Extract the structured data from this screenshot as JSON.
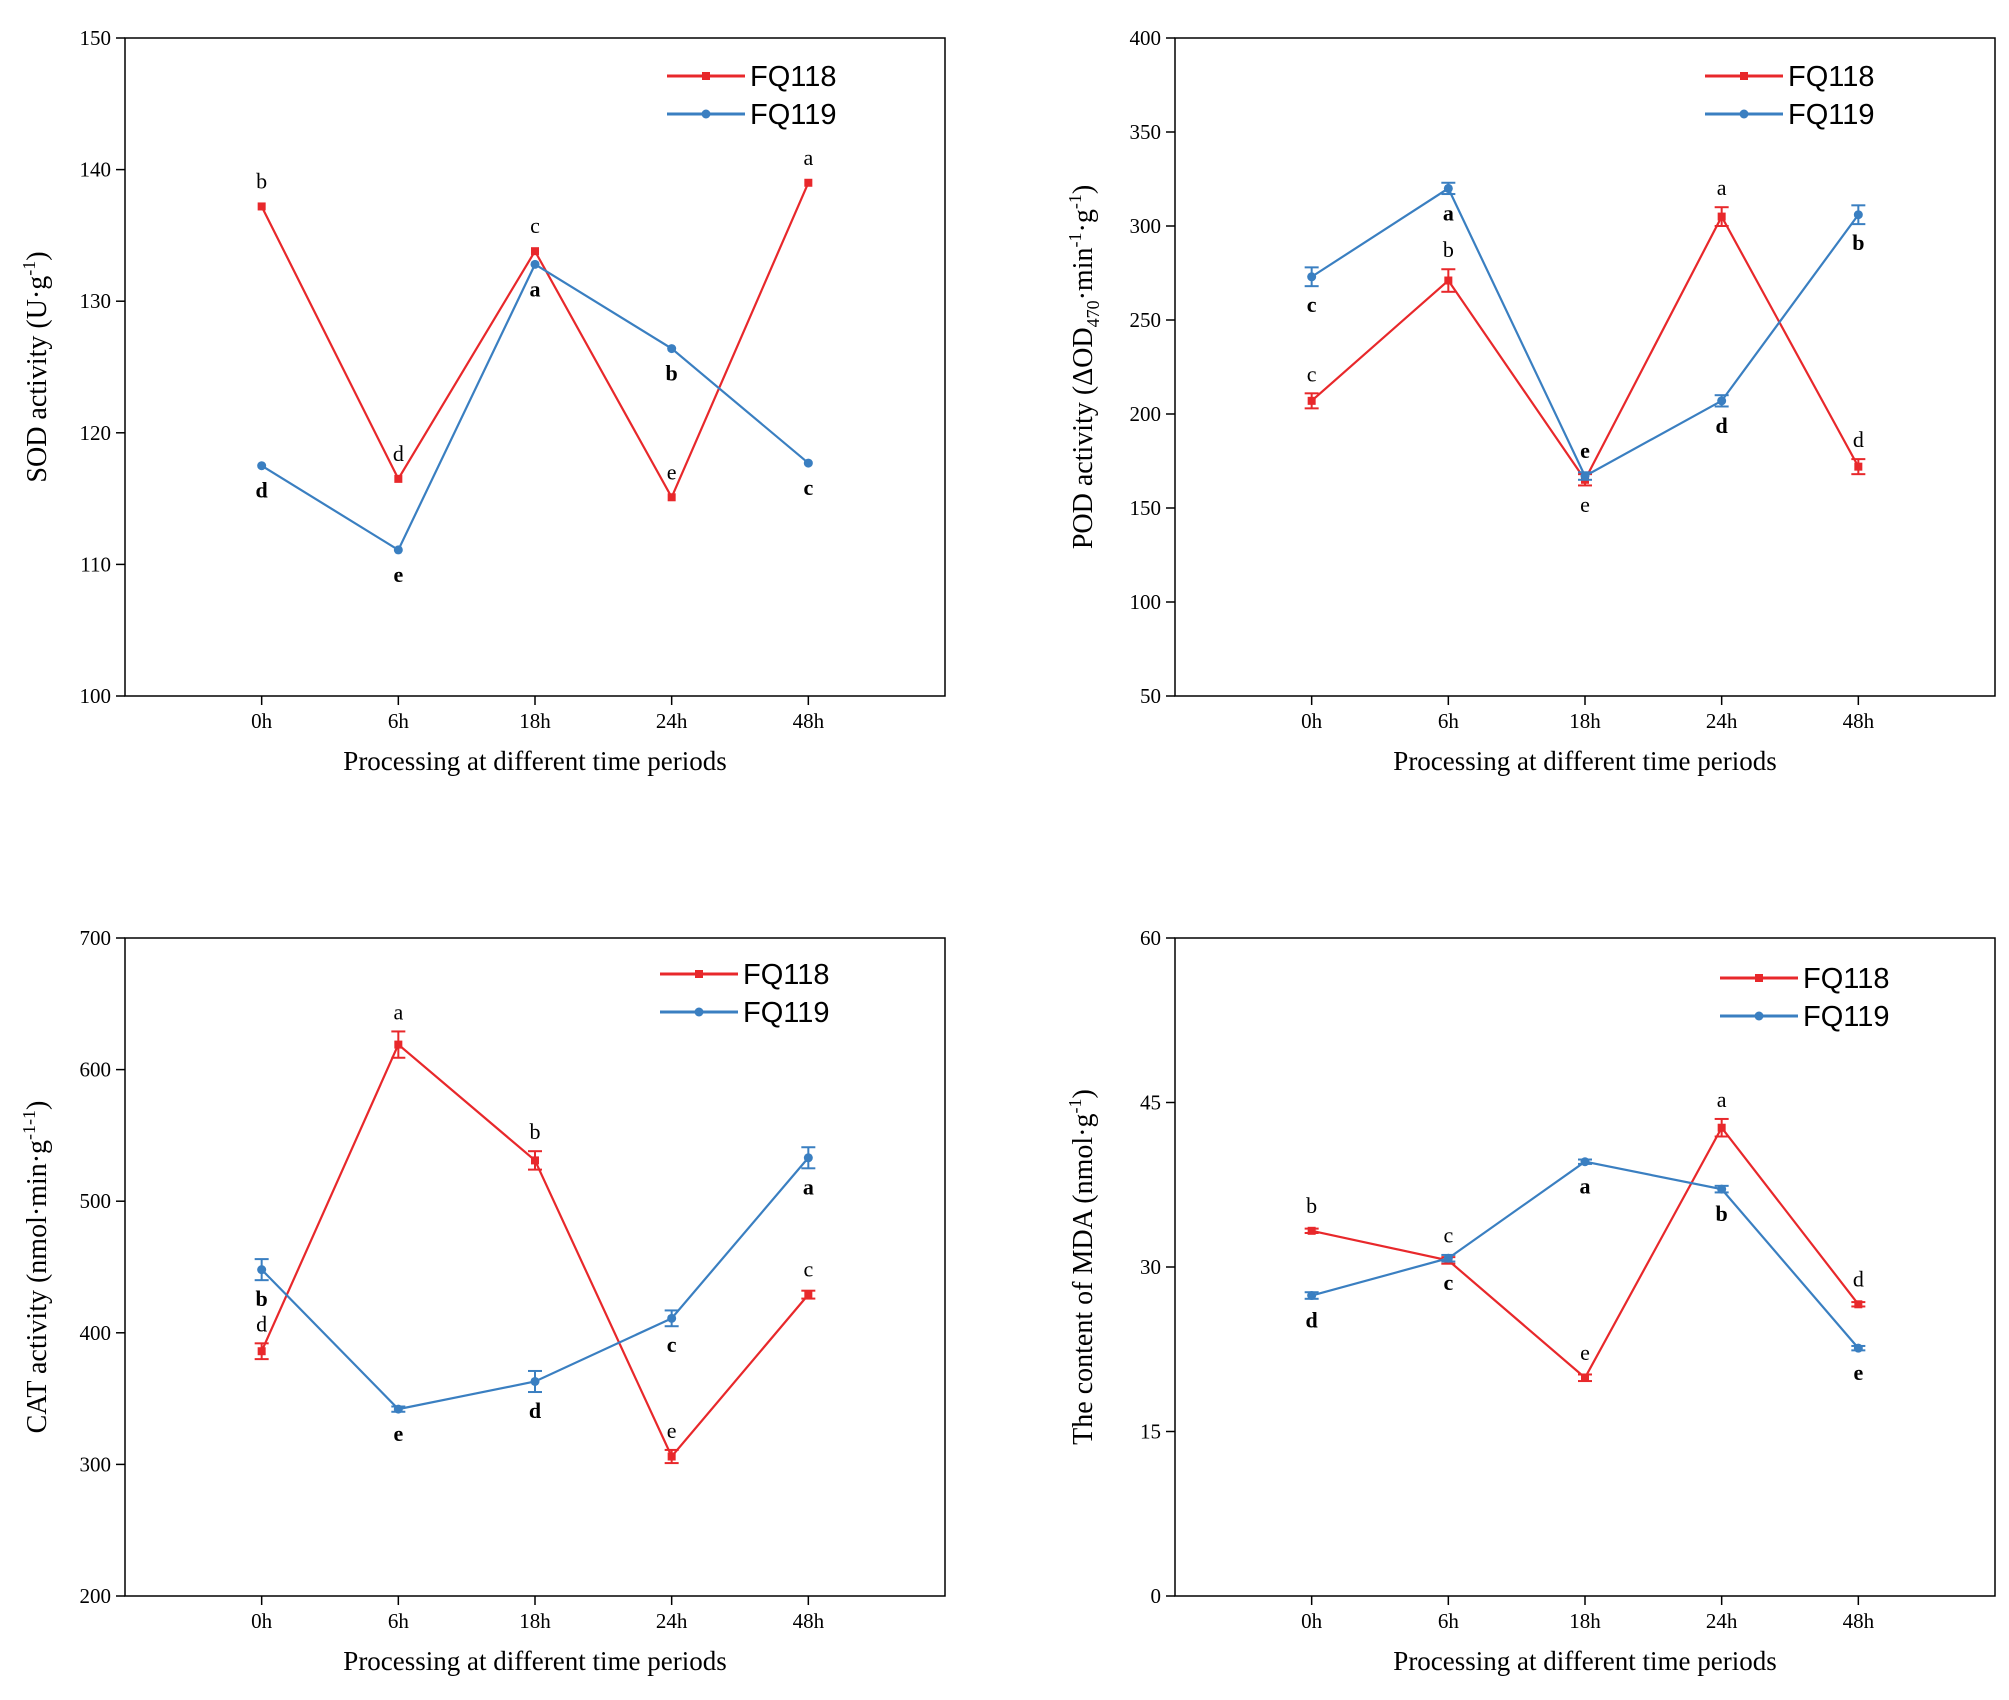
{
  "colors": {
    "FQ118": "#e8282b",
    "FQ119": "#3a7fc1",
    "axis": "#000000"
  },
  "chart_data": [
    {
      "type": "line",
      "categories": [
        "0h",
        "6h",
        "18h",
        "24h",
        "48h"
      ],
      "ylim": [
        100,
        150
      ],
      "yticks": [
        "100",
        "110",
        "120",
        "130",
        "140",
        "150"
      ],
      "xlabel": "Processing at different time periods",
      "ylabel": {
        "main": "SOD activity  (U·g",
        "sup": "-1",
        "end": ")"
      },
      "legend": [
        "FQ118",
        "FQ119"
      ],
      "series": [
        {
          "name": "FQ118",
          "values": [
            137.2,
            116.5,
            133.8,
            115.1,
            139.0
          ],
          "err": [
            0,
            0,
            0,
            0,
            0
          ],
          "labels": [
            "b",
            "d",
            "c",
            "e",
            "a"
          ],
          "label_pos": [
            "above",
            "above",
            "above",
            "above",
            "above"
          ]
        },
        {
          "name": "FQ119",
          "values": [
            117.5,
            111.1,
            132.8,
            126.4,
            117.7
          ],
          "err": [
            0,
            0,
            0,
            0,
            0
          ],
          "labels": [
            "d",
            "e",
            "a",
            "b",
            "c"
          ],
          "label_pos": [
            "below",
            "below",
            "below",
            "below",
            "below"
          ]
        }
      ]
    },
    {
      "type": "line",
      "categories": [
        "0h",
        "6h",
        "18h",
        "24h",
        "48h"
      ],
      "ylim": [
        50,
        400
      ],
      "yticks": [
        "50",
        "100",
        "150",
        "200",
        "250",
        "300",
        "350",
        "400"
      ],
      "xlabel": "Processing at different time periods",
      "ylabel": {
        "main": "POD activity (ΔOD",
        "sub": "470",
        "mid": "·min",
        "sup": "-1",
        "mid2": "·g",
        "sup2": "-1",
        "end": ")"
      },
      "legend": [
        "FQ118",
        "FQ119"
      ],
      "series": [
        {
          "name": "FQ118",
          "values": [
            207,
            271,
            165,
            305,
            172
          ],
          "err": [
            4,
            6,
            3,
            5,
            4
          ],
          "labels": [
            "c",
            "b",
            "e",
            "a",
            "d"
          ],
          "label_pos": [
            "above",
            "above",
            "below",
            "above",
            "above"
          ]
        },
        {
          "name": "FQ119",
          "values": [
            273,
            320,
            167,
            207,
            306
          ],
          "err": [
            5,
            3,
            2,
            3,
            5
          ],
          "labels": [
            "c",
            "a",
            "e",
            "d",
            "b"
          ],
          "label_pos": [
            "below",
            "below",
            "above",
            "below",
            "below"
          ]
        }
      ]
    },
    {
      "type": "line",
      "categories": [
        "0h",
        "6h",
        "18h",
        "24h",
        "48h"
      ],
      "ylim": [
        200,
        700
      ],
      "yticks": [
        "200",
        "300",
        "400",
        "500",
        "600",
        "700"
      ],
      "xlabel": "Processing at different time periods",
      "ylabel": {
        "main": "CAT activity (nmol·min",
        "sup": "-1",
        "mid": "·g",
        "sup2": "-1",
        "end": ")"
      },
      "legend": [
        "FQ118",
        "FQ119"
      ],
      "series": [
        {
          "name": "FQ118",
          "values": [
            386,
            619,
            531,
            306,
            429
          ],
          "err": [
            6,
            10,
            7,
            5,
            3
          ],
          "labels": [
            "d",
            "a",
            "b",
            "e",
            "c"
          ],
          "label_pos": [
            "above",
            "above",
            "above",
            "above",
            "above"
          ]
        },
        {
          "name": "FQ119",
          "values": [
            448,
            342,
            363,
            411,
            533
          ],
          "err": [
            8,
            2,
            8,
            6,
            8
          ],
          "labels": [
            "b",
            "e",
            "d",
            "c",
            "a"
          ],
          "label_pos": [
            "below",
            "below",
            "below",
            "below",
            "below"
          ]
        }
      ]
    },
    {
      "type": "line",
      "categories": [
        "0h",
        "6h",
        "18h",
        "24h",
        "48h"
      ],
      "ylim": [
        0,
        60
      ],
      "yticks": [
        "0",
        "15",
        "30",
        "45",
        "60"
      ],
      "xlabel": "Processing at different time periods",
      "ylabel": {
        "main": "The content of  MDA (nmol·g",
        "sup": "-1",
        "end": ")"
      },
      "legend": [
        "FQ118",
        "FQ119"
      ],
      "series": [
        {
          "name": "FQ118",
          "values": [
            33.3,
            30.6,
            19.9,
            42.7,
            26.6
          ],
          "err": [
            0.2,
            0.3,
            0.3,
            0.8,
            0.2
          ],
          "labels": [
            "b",
            "c",
            "e",
            "a",
            "d"
          ],
          "label_pos": [
            "above",
            "above",
            "above",
            "above",
            "above"
          ]
        },
        {
          "name": "FQ119",
          "values": [
            27.4,
            30.8,
            39.6,
            37.1,
            22.6
          ],
          "err": [
            0.3,
            0.3,
            0.2,
            0.3,
            0.2
          ],
          "labels": [
            "d",
            "c",
            "a",
            "b",
            "e"
          ],
          "label_pos": [
            "below",
            "below",
            "below",
            "below",
            "below"
          ]
        }
      ]
    }
  ]
}
